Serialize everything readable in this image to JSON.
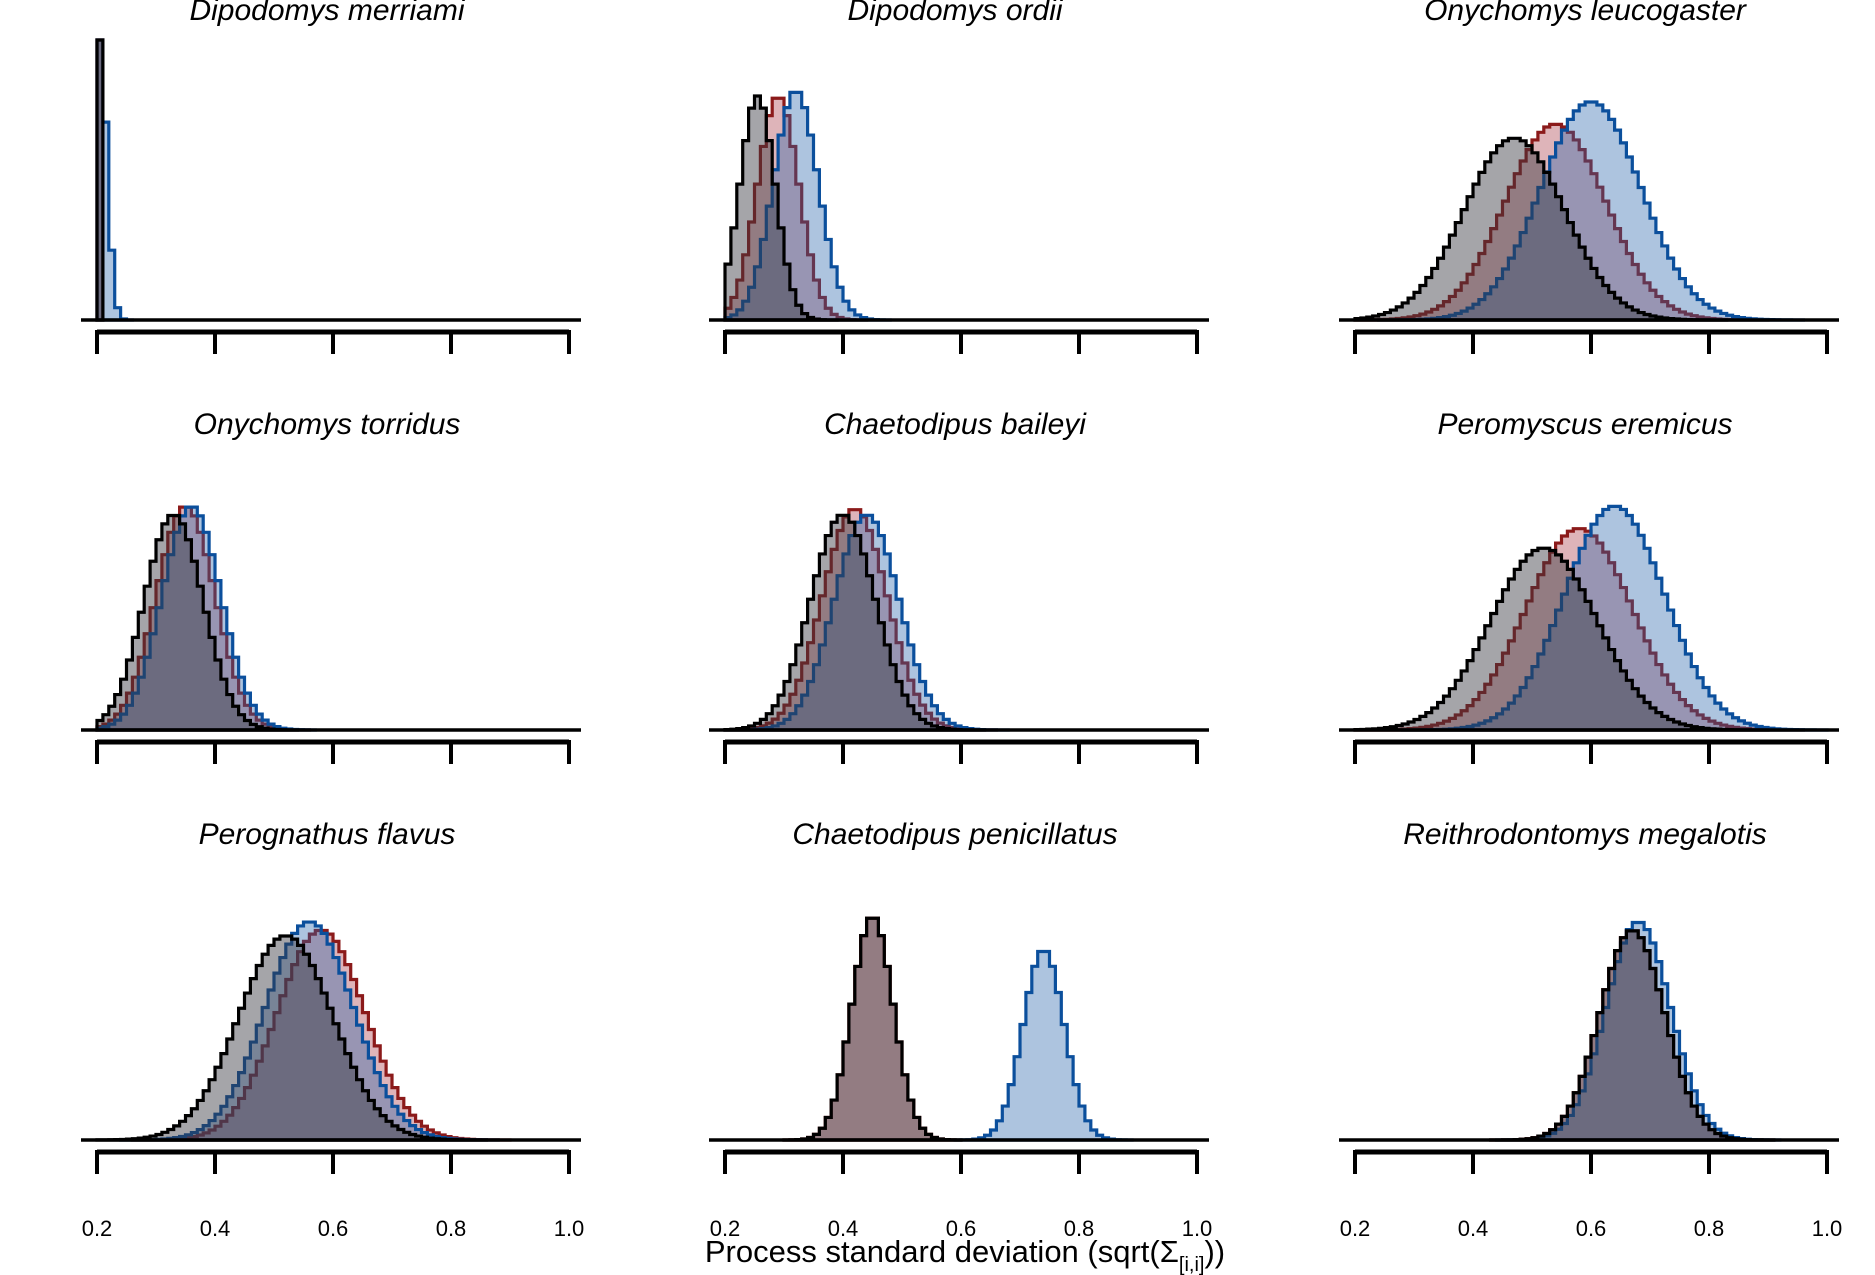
{
  "figure": {
    "xlabel": "Process standard deviation (sqrt(Σ",
    "xlabel_sub": "[i,i]",
    "xlabel_close": "))"
  },
  "colors": {
    "red": "#8b1a1a",
    "red_fill": "rgba(160,40,55,0.35)",
    "blue": "#0b4f9c",
    "blue_fill": "rgba(40,100,170,0.38)",
    "black": "#000000",
    "black_fill": "rgba(55,55,65,0.45)"
  },
  "chart_data": [
    {
      "type": "histogram",
      "title": "Dipodomys merriami",
      "xlim": [
        0.2,
        1.0
      ],
      "ticks": [
        "0.2",
        "0.4",
        "0.6",
        "0.8",
        "1.0"
      ],
      "show_tick_labels": false,
      "series": [
        {
          "color": "red",
          "mean": 0.203,
          "sd": 0.003,
          "height": 1.0
        },
        {
          "color": "blue",
          "mean": 0.205,
          "sd": 0.012,
          "height": 1.0
        },
        {
          "color": "black",
          "mean": 0.203,
          "sd": 0.003,
          "height": 1.0
        }
      ]
    },
    {
      "type": "histogram",
      "title": "Dipodomys ordii",
      "xlim": [
        0.2,
        1.0
      ],
      "ticks": [
        "0.2",
        "0.4",
        "0.6",
        "0.8",
        "1.0"
      ],
      "show_tick_labels": false,
      "series": [
        {
          "color": "red",
          "mean": 0.29,
          "sd": 0.035,
          "height": 0.8
        },
        {
          "color": "blue",
          "mean": 0.32,
          "sd": 0.038,
          "height": 0.82
        },
        {
          "color": "black",
          "mean": 0.255,
          "sd": 0.03,
          "height": 0.8
        }
      ]
    },
    {
      "type": "histogram",
      "title": "Onychomys leucogaster",
      "xlim": [
        0.2,
        1.0
      ],
      "ticks": [
        "0.2",
        "0.4",
        "0.6",
        "0.8",
        "1.0"
      ],
      "show_tick_labels": false,
      "series": [
        {
          "color": "red",
          "mean": 0.54,
          "sd": 0.085,
          "height": 0.7
        },
        {
          "color": "blue",
          "mean": 0.6,
          "sd": 0.085,
          "height": 0.78
        },
        {
          "color": "black",
          "mean": 0.47,
          "sd": 0.085,
          "height": 0.65
        }
      ]
    },
    {
      "type": "histogram",
      "title": "Onychomys torridus",
      "xlim": [
        0.2,
        1.0
      ],
      "ticks": [
        "0.2",
        "0.4",
        "0.6",
        "0.8",
        "1.0"
      ],
      "show_tick_labels": false,
      "series": [
        {
          "color": "red",
          "mean": 0.35,
          "sd": 0.05,
          "height": 0.8
        },
        {
          "color": "blue",
          "mean": 0.36,
          "sd": 0.05,
          "height": 0.8
        },
        {
          "color": "black",
          "mean": 0.33,
          "sd": 0.05,
          "height": 0.77
        }
      ]
    },
    {
      "type": "histogram",
      "title": "Chaetodipus baileyi",
      "xlim": [
        0.2,
        1.0
      ],
      "ticks": [
        "0.2",
        "0.4",
        "0.6",
        "0.8",
        "1.0"
      ],
      "show_tick_labels": false,
      "series": [
        {
          "color": "red",
          "mean": 0.42,
          "sd": 0.055,
          "height": 0.79
        },
        {
          "color": "blue",
          "mean": 0.44,
          "sd": 0.055,
          "height": 0.77
        },
        {
          "color": "black",
          "mean": 0.4,
          "sd": 0.055,
          "height": 0.77
        }
      ]
    },
    {
      "type": "histogram",
      "title": "Peromyscus eremicus",
      "xlim": [
        0.2,
        1.0
      ],
      "ticks": [
        "0.2",
        "0.4",
        "0.6",
        "0.8",
        "1.0"
      ],
      "show_tick_labels": false,
      "series": [
        {
          "color": "red",
          "mean": 0.58,
          "sd": 0.09,
          "height": 0.72
        },
        {
          "color": "blue",
          "mean": 0.64,
          "sd": 0.085,
          "height": 0.8
        },
        {
          "color": "black",
          "mean": 0.52,
          "sd": 0.09,
          "height": 0.65
        }
      ]
    },
    {
      "type": "histogram",
      "title": "Perognathus flavus",
      "xlim": [
        0.2,
        1.0
      ],
      "ticks": [
        "0.2",
        "0.4",
        "0.6",
        "0.8",
        "1.0"
      ],
      "show_tick_labels": true,
      "series": [
        {
          "color": "red",
          "mean": 0.58,
          "sd": 0.075,
          "height": 0.75
        },
        {
          "color": "blue",
          "mean": 0.56,
          "sd": 0.075,
          "height": 0.78
        },
        {
          "color": "black",
          "mean": 0.52,
          "sd": 0.08,
          "height": 0.73
        }
      ]
    },
    {
      "type": "histogram",
      "title": "Chaetodipus penicillatus",
      "xlim": [
        0.2,
        1.0
      ],
      "ticks": [
        "0.2",
        "0.4",
        "0.6",
        "0.8",
        "1.0"
      ],
      "show_tick_labels": true,
      "series": [
        {
          "color": "red",
          "mean": 0.45,
          "sd": 0.035,
          "height": 0.8
        },
        {
          "color": "blue",
          "mean": 0.74,
          "sd": 0.035,
          "height": 0.68
        },
        {
          "color": "black",
          "mean": 0.45,
          "sd": 0.035,
          "height": 0.8
        }
      ]
    },
    {
      "type": "histogram",
      "title": "Reithrodontomys megalotis",
      "xlim": [
        0.2,
        1.0
      ],
      "ticks": [
        "0.2",
        "0.4",
        "0.6",
        "0.8",
        "1.0"
      ],
      "show_tick_labels": true,
      "series": [
        {
          "color": "red",
          "mean": 0.67,
          "sd": 0.055,
          "height": 0.75
        },
        {
          "color": "blue",
          "mean": 0.68,
          "sd": 0.055,
          "height": 0.78
        },
        {
          "color": "black",
          "mean": 0.67,
          "sd": 0.055,
          "height": 0.75
        }
      ]
    }
  ]
}
